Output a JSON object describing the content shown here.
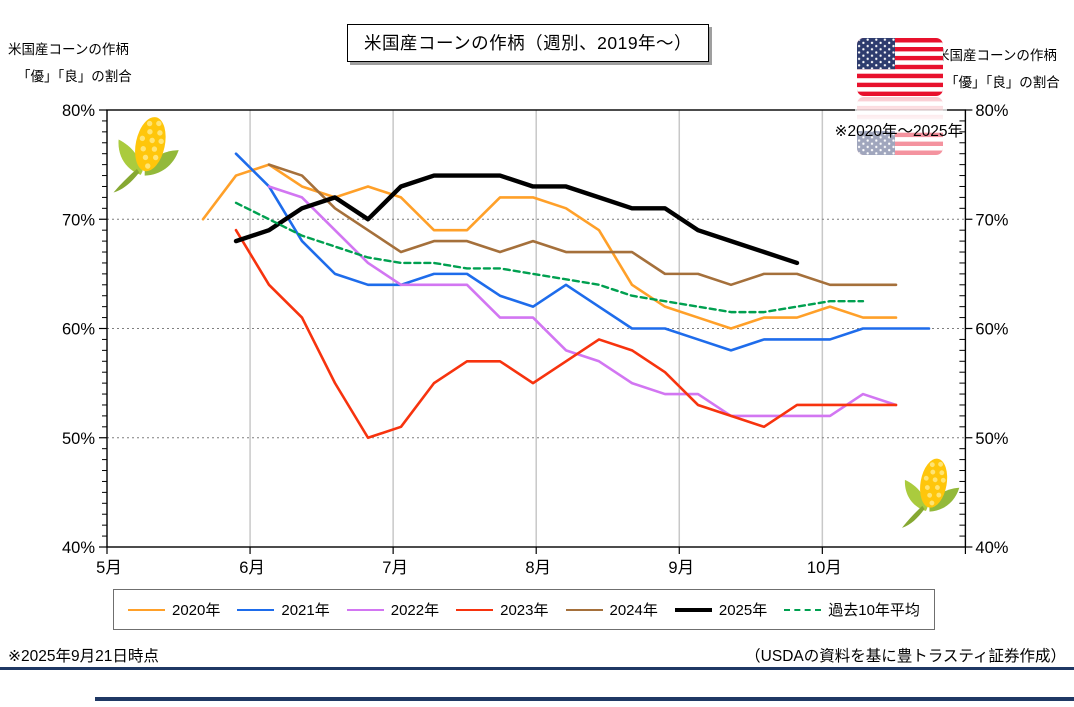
{
  "header": {
    "title": "米国産コーンの作柄（週別、2019年～）",
    "left_caption_line1": "米国産コーンの作柄",
    "left_caption_line2": "「優」「良」の割合",
    "right_caption_line1": "米国産コーンの作柄",
    "right_caption_line2": "「優」「良」の割合"
  },
  "plot_note": "※2020年～2025年",
  "footer": {
    "as_of": "※2025年9月21日時点",
    "source": "（USDAの資料を基に豊トラスティ証券作成）"
  },
  "icons": {
    "flag": "us-flag-icon",
    "corn_top_left": "corn-icon",
    "corn_bottom_right": "corn-icon"
  },
  "colors": {
    "rule_navy": "#1F3864",
    "month_gridline": "#C8C8C8",
    "dotted_gridline": "#7F7F7F",
    "axis": "#000000"
  },
  "chart_data": {
    "type": "line",
    "title": "米国産コーンの作柄（週別、2019年～）",
    "ylabel": "「優」「良」の割合",
    "ylim": [
      40,
      80
    ],
    "y_tick_labels": [
      "80%",
      "70%",
      "60%",
      "50%",
      "40%"
    ],
    "y_dotted_gridlines": [
      70,
      60,
      50
    ],
    "x_tick_labels": [
      "5月",
      "6月",
      "7月",
      "8月",
      "9月",
      "10月"
    ],
    "x_unit": "week (USDA weekly crop condition, good+excellent %)",
    "legend_position": "bottom",
    "series": [
      {
        "name": "2020年",
        "color": "#FFA029",
        "width": 2.6,
        "dashed": false,
        "start_week": 0,
        "values": [
          70,
          74,
          75,
          73,
          72,
          73,
          72,
          69,
          69,
          72,
          72,
          71,
          69,
          64,
          62,
          61,
          60,
          61,
          61,
          62,
          61,
          61
        ]
      },
      {
        "name": "2021年",
        "color": "#1E6CEB",
        "width": 2.6,
        "dashed": false,
        "start_week": 1,
        "values": [
          76,
          73,
          68,
          65,
          64,
          64,
          65,
          65,
          63,
          62,
          64,
          62,
          60,
          60,
          59,
          58,
          59,
          59,
          59,
          60,
          60,
          60
        ]
      },
      {
        "name": "2022年",
        "color": "#D276F2",
        "width": 2.6,
        "dashed": false,
        "start_week": 2,
        "values": [
          73,
          72,
          69,
          66,
          64,
          64,
          64,
          61,
          61,
          58,
          57,
          55,
          54,
          54,
          52,
          52,
          52,
          52,
          54,
          53
        ]
      },
      {
        "name": "2023年",
        "color": "#F7330E",
        "width": 2.6,
        "dashed": false,
        "start_week": 1,
        "values": [
          69,
          64,
          61,
          55,
          50,
          51,
          55,
          57,
          57,
          55,
          57,
          59,
          58,
          56,
          53,
          52,
          51,
          53,
          53,
          53,
          53
        ]
      },
      {
        "name": "2024年",
        "color": "#A5703B",
        "width": 2.6,
        "dashed": false,
        "start_week": 2,
        "values": [
          75,
          74,
          71,
          69,
          67,
          68,
          68,
          67,
          68,
          67,
          67,
          67,
          65,
          65,
          64,
          65,
          65,
          64,
          64,
          64
        ]
      },
      {
        "name": "2025年",
        "color": "#000000",
        "width": 4.4,
        "dashed": false,
        "start_week": 1,
        "values": [
          68,
          69,
          71,
          72,
          70,
          73,
          74,
          74,
          74,
          73,
          73,
          72,
          71,
          71,
          69,
          68,
          67,
          66
        ]
      },
      {
        "name": "過去10年平均",
        "color": "#00A050",
        "width": 2.4,
        "dashed": true,
        "start_week": 1,
        "values": [
          71.5,
          70,
          68.5,
          67.5,
          66.5,
          66,
          66,
          65.5,
          65.5,
          65,
          64.5,
          64,
          63,
          62.5,
          62,
          61.5,
          61.5,
          62,
          62.5,
          62.5
        ]
      }
    ]
  }
}
